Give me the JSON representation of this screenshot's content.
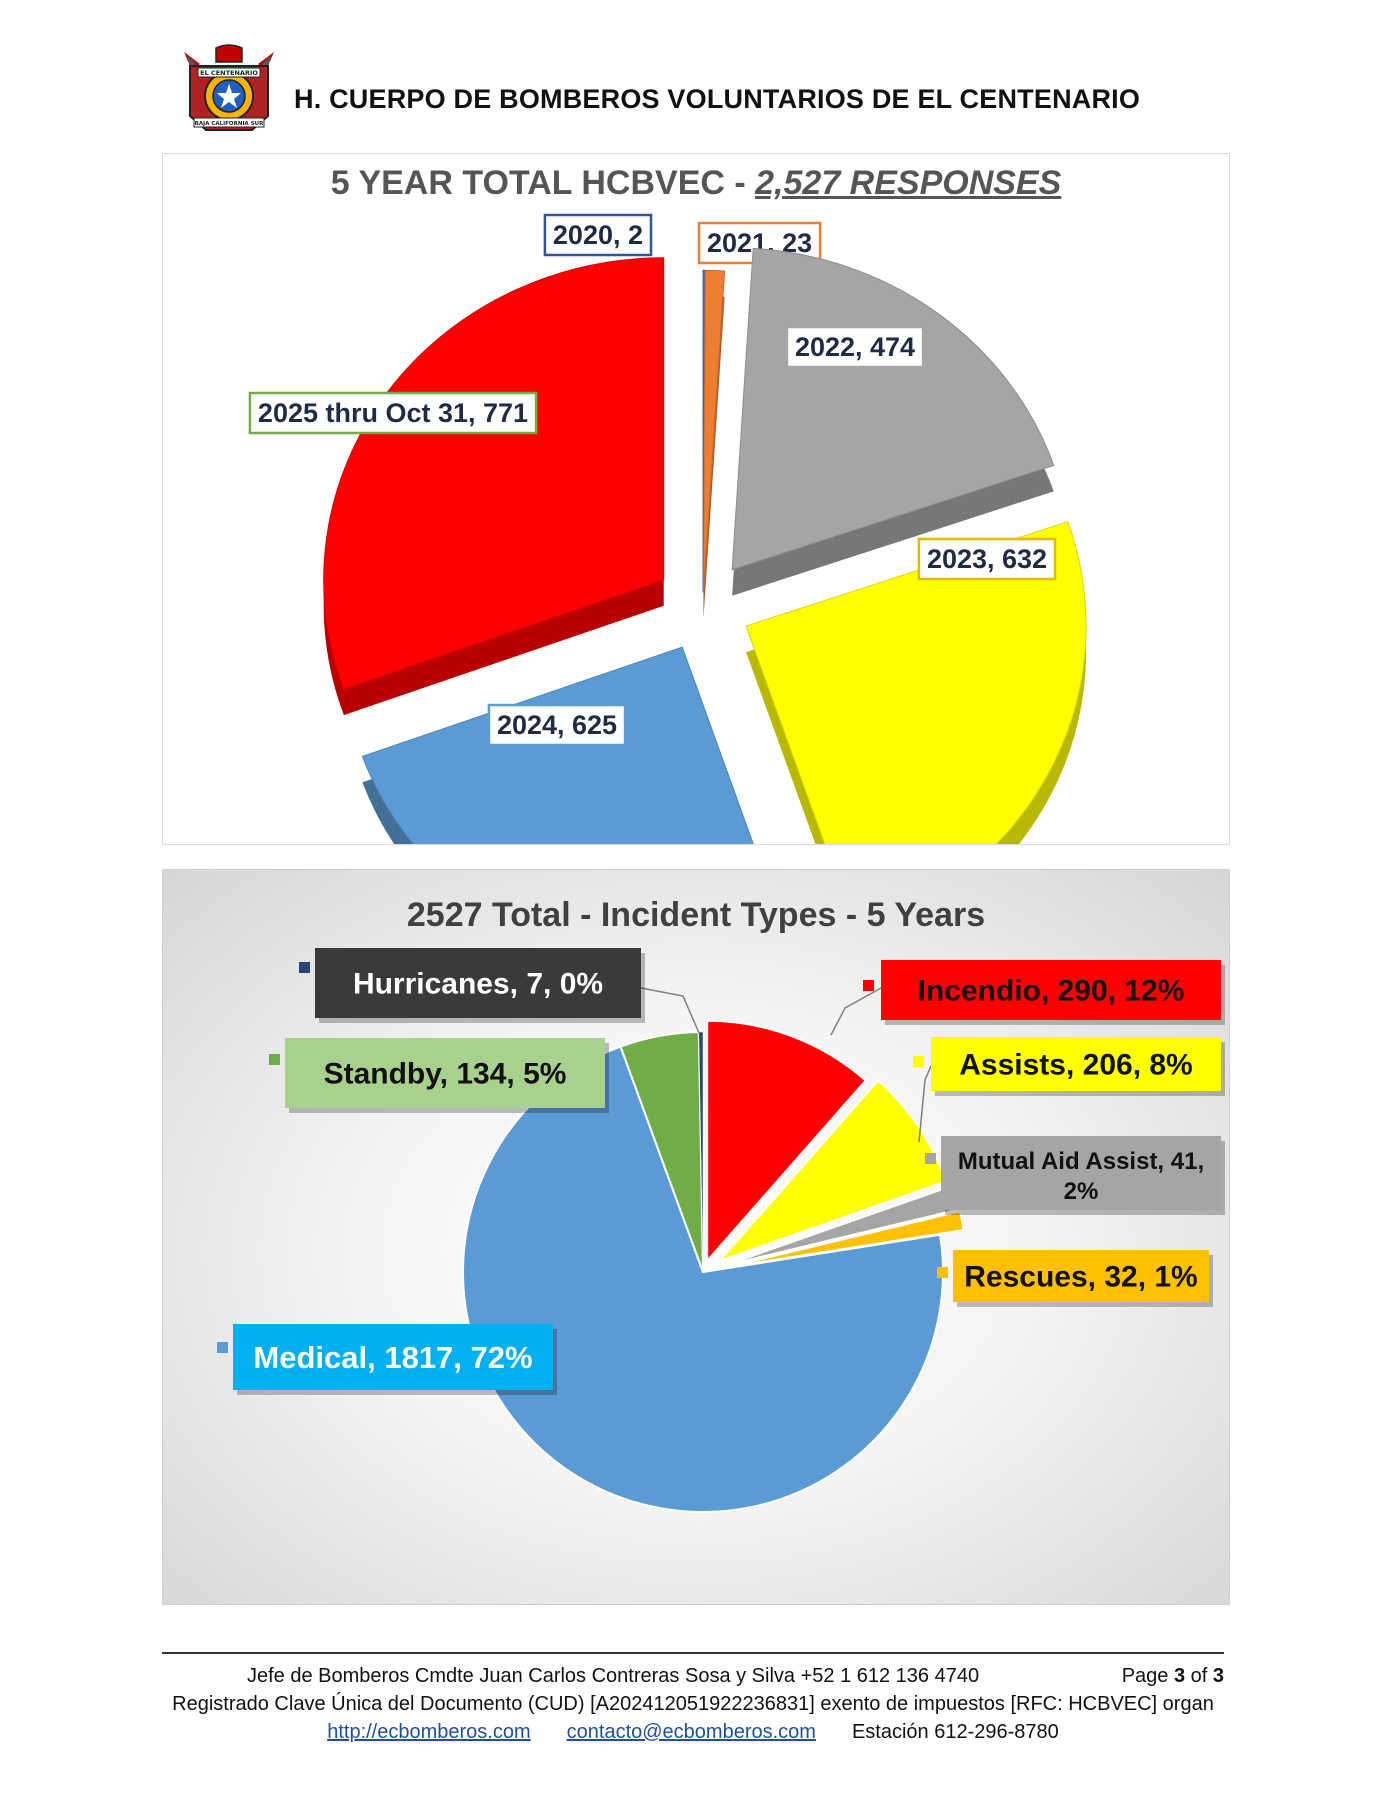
{
  "header": {
    "org_title": "H. CUERPO DE BOMBEROS VOLUNTARIOS DE EL CENTENARIO",
    "logo_top_text": "EL CENTENARIO",
    "logo_bottom_text": "BAJA CALIFORNIA SUR"
  },
  "footer": {
    "line1": "Jefe de Bomberos Cmdte Juan Carlos Contreras Sosa y Silva   +52 1 612 136 4740",
    "page_prefix": "Page ",
    "page_current": "3",
    "page_of": " of ",
    "page_total": "3",
    "line2": "Registrado Clave Única del Documento (CUD) [A202412051922236831]  exento de impuestos [RFC: HCBVEC] organ",
    "website": "http://ecbomberos.com",
    "email": "contacto@ecbomberos.com",
    "station": "Estación 612-296-8780"
  },
  "chart_data": [
    {
      "type": "pie",
      "title_main": "5 YEAR TOTAL HCBVEC - ",
      "title_highlight": "2,527 RESPONSES",
      "style": "exploded 3D pie",
      "slices": [
        {
          "label": "2020, 2",
          "category": "2020",
          "value": 2,
          "color": "#4472c4"
        },
        {
          "label": "2021, 23",
          "category": "2021",
          "value": 23,
          "color": "#ed7d31"
        },
        {
          "label": "2022, 474",
          "category": "2022",
          "value": 474,
          "color": "#a5a5a5"
        },
        {
          "label": "2023, 632",
          "category": "2023",
          "value": 632,
          "color": "#ffff00"
        },
        {
          "label": "2024, 625",
          "category": "2024",
          "value": 625,
          "color": "#5b9bd5"
        },
        {
          "label": "2025 thru Oct 31, 771",
          "category": "2025 thru Oct 31",
          "value": 771,
          "color": "#ff0000"
        }
      ]
    },
    {
      "type": "pie",
      "title": "2527 Total - Incident Types - 5 Years",
      "slices": [
        {
          "label": "Incendio, 290, 12%",
          "category": "Incendio",
          "value": 290,
          "percent": 12,
          "color": "#ff0000"
        },
        {
          "label": "Assists, 206, 8%",
          "category": "Assists",
          "value": 206,
          "percent": 8,
          "color": "#ffff00"
        },
        {
          "label": "Mutual Aid Assist, 41, 2%",
          "category": "Mutual Aid Assist",
          "value": 41,
          "percent": 2,
          "color": "#a5a5a5"
        },
        {
          "label": "Rescues, 32, 1%",
          "category": "Rescues",
          "value": 32,
          "percent": 1,
          "color": "#ffc000"
        },
        {
          "label": "Medical, 1817, 72%",
          "category": "Medical",
          "value": 1817,
          "percent": 72,
          "color": "#5b9bd5"
        },
        {
          "label": "Standby, 134, 5%",
          "category": "Standby",
          "value": 134,
          "percent": 5,
          "color": "#70ad47"
        },
        {
          "label": "Hurricanes, 7, 0%",
          "category": "Hurricanes",
          "value": 7,
          "percent": 0,
          "color": "#264478"
        }
      ]
    }
  ]
}
